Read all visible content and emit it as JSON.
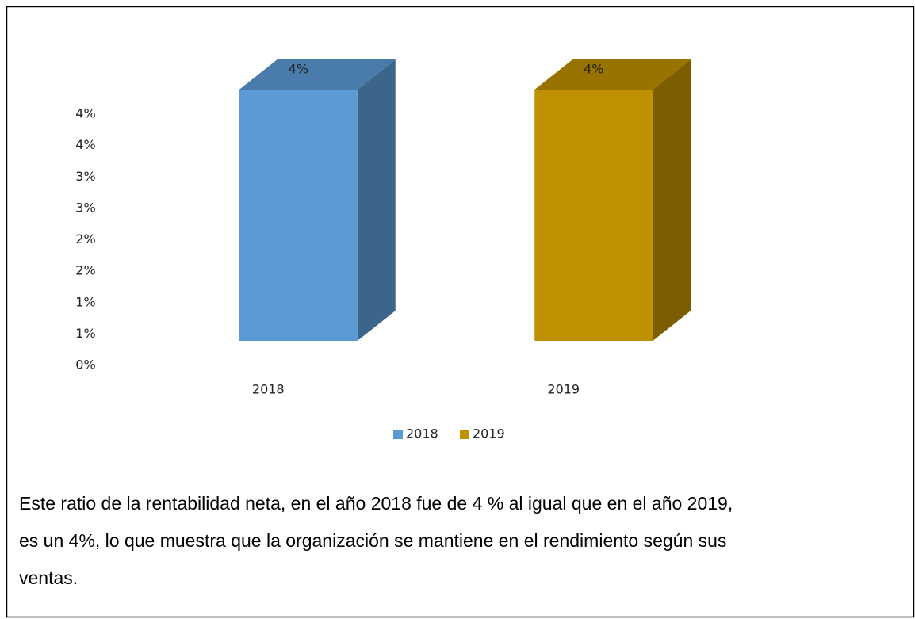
{
  "chart_data": {
    "type": "bar3d",
    "categories": [
      "2018",
      "2019"
    ],
    "values": [
      4,
      4
    ],
    "value_labels": [
      "4%",
      "4%"
    ],
    "colors": [
      "#5b9bd5",
      "#bf9000"
    ],
    "ylim": [
      0,
      4
    ],
    "yticks": [
      {
        "value": 0,
        "label": "0%"
      },
      {
        "value": 0.5,
        "label": "1%"
      },
      {
        "value": 1,
        "label": "1%"
      },
      {
        "value": 1.5,
        "label": "2%"
      },
      {
        "value": 2,
        "label": "2%"
      },
      {
        "value": 2.5,
        "label": "3%"
      },
      {
        "value": 3,
        "label": "3%"
      },
      {
        "value": 3.5,
        "label": "4%"
      },
      {
        "value": 4,
        "label": "4%"
      }
    ],
    "legend": "bottom"
  },
  "caption": {
    "lines": [
      "Este ratio de la rentabilidad neta, en el año 2018 fue de 4 % al igual que en el año 2019,",
      "es un 4%, lo que muestra que la organización se mantiene en el rendimiento según sus",
      "ventas."
    ]
  }
}
